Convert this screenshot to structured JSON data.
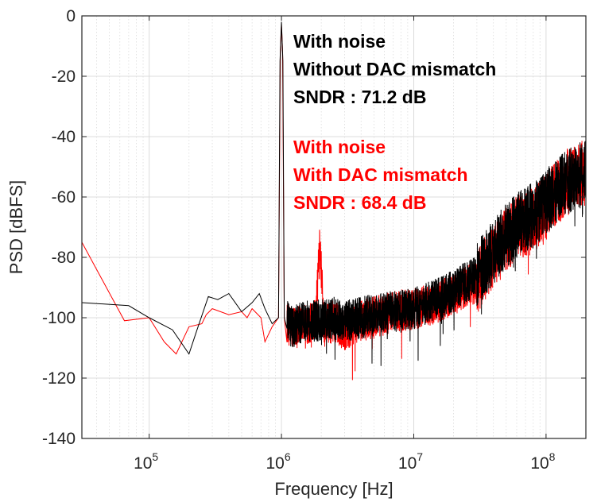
{
  "chart_data": {
    "type": "line",
    "title": "",
    "xlabel": "Frequency [Hz]",
    "ylabel": "PSD [dBFS]",
    "xscale": "log",
    "xlim": [
      31000,
      200000000
    ],
    "ylim": [
      -140,
      0
    ],
    "grid": true,
    "x_ticks": [
      {
        "base": "10",
        "exp": "5",
        "value": 100000
      },
      {
        "base": "10",
        "exp": "6",
        "value": 1000000
      },
      {
        "base": "10",
        "exp": "7",
        "value": 10000000
      },
      {
        "base": "10",
        "exp": "8",
        "value": 100000000
      }
    ],
    "y_ticks": [
      0,
      -20,
      -40,
      -60,
      -80,
      -100,
      -120,
      -140
    ],
    "colors": {
      "black": "#000000",
      "red": "#ff0000",
      "axis": "#262626",
      "grid": "#dcdcdc"
    },
    "annotations": [
      {
        "lines": [
          "With noise",
          "Without DAC mismatch",
          "SNDR : 71.2 dB"
        ],
        "color": "#000000"
      },
      {
        "lines": [
          "With noise",
          "With DAC mismatch",
          "SNDR : 68.4 dB"
        ],
        "color": "#ff0000"
      }
    ],
    "series": [
      {
        "color": "#ff0000",
        "points": [
          [
            31000,
            -75
          ],
          [
            65000,
            -101
          ],
          [
            100000,
            -100
          ],
          [
            130000,
            -108
          ],
          [
            160000,
            -112
          ],
          [
            200000,
            -103
          ],
          [
            250000,
            -102
          ],
          [
            270000,
            -99
          ],
          [
            300000,
            -97
          ],
          [
            400000,
            -99
          ],
          [
            500000,
            -98
          ],
          [
            550000,
            -100
          ],
          [
            600000,
            -97
          ],
          [
            700000,
            -100
          ],
          [
            750000,
            -108
          ],
          [
            850000,
            -103
          ],
          [
            950000,
            -100
          ],
          [
            980000,
            -12
          ],
          [
            1000000,
            -3
          ],
          [
            1020000,
            -12
          ],
          [
            1050000,
            -100
          ],
          [
            1200000,
            -104
          ],
          [
            1500000,
            -102
          ],
          [
            1800000,
            -101
          ],
          [
            1900000,
            -84
          ],
          [
            1950000,
            -76
          ],
          [
            2000000,
            -84
          ],
          [
            2100000,
            -103
          ],
          [
            2500000,
            -101
          ],
          [
            3000000,
            -104
          ],
          [
            4000000,
            -101
          ],
          [
            5000000,
            -100
          ],
          [
            7000000,
            -98
          ],
          [
            10000000,
            -97
          ],
          [
            15000000,
            -95
          ],
          [
            20000000,
            -92
          ],
          [
            30000000,
            -88
          ],
          [
            40000000,
            -80
          ],
          [
            50000000,
            -74
          ],
          [
            60000000,
            -70
          ],
          [
            80000000,
            -68
          ],
          [
            100000000,
            -63
          ],
          [
            130000000,
            -57
          ],
          [
            160000000,
            -53
          ],
          [
            200000000,
            -52
          ]
        ]
      },
      {
        "color": "#000000",
        "points": [
          [
            31000,
            -95
          ],
          [
            70000,
            -96
          ],
          [
            100000,
            -100
          ],
          [
            150000,
            -104
          ],
          [
            200000,
            -112
          ],
          [
            230000,
            -104
          ],
          [
            280000,
            -93
          ],
          [
            330000,
            -94
          ],
          [
            400000,
            -92
          ],
          [
            500000,
            -98
          ],
          [
            600000,
            -95
          ],
          [
            680000,
            -92
          ],
          [
            750000,
            -97
          ],
          [
            850000,
            -102
          ],
          [
            950000,
            -100
          ],
          [
            975000,
            -15
          ],
          [
            1000000,
            -2
          ],
          [
            1025000,
            -15
          ],
          [
            1050000,
            -100
          ],
          [
            1200000,
            -103
          ],
          [
            1500000,
            -101
          ],
          [
            2000000,
            -101
          ],
          [
            2500000,
            -100
          ],
          [
            3000000,
            -101
          ],
          [
            4000000,
            -100
          ],
          [
            5000000,
            -99
          ],
          [
            7000000,
            -98
          ],
          [
            10000000,
            -97
          ],
          [
            15000000,
            -94
          ],
          [
            20000000,
            -91
          ],
          [
            30000000,
            -86
          ],
          [
            40000000,
            -78
          ],
          [
            50000000,
            -73
          ],
          [
            60000000,
            -69
          ],
          [
            80000000,
            -66
          ],
          [
            100000000,
            -62
          ],
          [
            130000000,
            -56
          ],
          [
            160000000,
            -54
          ],
          [
            200000000,
            -52
          ]
        ]
      }
    ]
  }
}
